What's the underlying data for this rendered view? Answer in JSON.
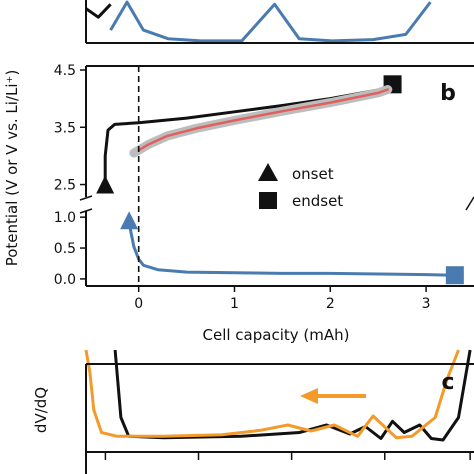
{
  "figure": {
    "panel_b_label": "b",
    "panel_c_label": "c"
  },
  "colors": {
    "black": "#111111",
    "blue": "#4a7bb0",
    "red": "#e06060",
    "gray": "#bdbdbd",
    "orange": "#f39a2b"
  },
  "chart_data": [
    {
      "id": "panel-a-fragment",
      "type": "line",
      "title": "",
      "series": [
        {
          "color": "#111111",
          "x": [
            0.0,
            0.15,
            0.3
          ],
          "y": [
            0.8,
            0.6,
            0.9
          ]
        },
        {
          "color": "#4a7bb0",
          "x": [
            0.3,
            0.5,
            0.7,
            1.0,
            1.4,
            1.9,
            2.3,
            2.6,
            3.0,
            3.5,
            3.9,
            4.2
          ],
          "y": [
            0.3,
            0.95,
            0.3,
            0.1,
            0.05,
            0.05,
            0.9,
            0.1,
            0.05,
            0.08,
            0.2,
            0.95
          ]
        }
      ]
    },
    {
      "id": "panel-b",
      "type": "line",
      "title": "",
      "xlabel": "Cell capacity (mAh)",
      "ylabel": "Potential (V or V vs. Li/Li⁺)",
      "xlim": [
        -0.55,
        3.5
      ],
      "x_ticks": [
        "0",
        "1",
        "2",
        "3"
      ],
      "upper_ylim": [
        2.3,
        4.5
      ],
      "upper_y_ticks": [
        "2.5",
        "3.5",
        "4.5"
      ],
      "lower_ylim": [
        -0.05,
        1.1
      ],
      "lower_y_ticks": [
        "0.0",
        "0.5",
        "1.0"
      ],
      "reference_line_x": 0,
      "legend": [
        {
          "marker": "triangle",
          "label": "onset"
        },
        {
          "marker": "square",
          "label": "endset"
        }
      ],
      "legend_placement": "center-right",
      "series": [
        {
          "color": "#111111",
          "x": [
            -0.35,
            -0.35,
            -0.32,
            -0.25,
            0.0,
            0.5,
            1.0,
            1.5,
            2.0,
            2.5,
            2.65
          ],
          "y": [
            2.5,
            3.0,
            3.45,
            3.55,
            3.58,
            3.66,
            3.77,
            3.88,
            4.0,
            4.15,
            4.25
          ],
          "markers": {
            "start": "triangle",
            "end": "square"
          }
        },
        {
          "color": "#bdbdbd",
          "x": [
            -0.05,
            0.0,
            0.1,
            0.3,
            0.6,
            1.0,
            1.5,
            2.0,
            2.5,
            2.6
          ],
          "y": [
            3.05,
            3.1,
            3.2,
            3.35,
            3.48,
            3.62,
            3.78,
            3.93,
            4.1,
            4.16
          ]
        },
        {
          "color": "#e06060",
          "x": [
            0.0,
            0.1,
            0.3,
            0.6,
            1.0,
            1.5,
            2.0,
            2.5,
            2.6
          ],
          "y": [
            3.1,
            3.2,
            3.35,
            3.48,
            3.62,
            3.78,
            3.93,
            4.1,
            4.16
          ]
        },
        {
          "color": "#4a7bb0",
          "x": [
            -0.1,
            -0.08,
            -0.05,
            0.0,
            0.05,
            0.2,
            0.5,
            1.0,
            1.5,
            2.0,
            2.5,
            3.0,
            3.3
          ],
          "y": [
            0.95,
            0.75,
            0.52,
            0.32,
            0.22,
            0.15,
            0.11,
            0.1,
            0.09,
            0.09,
            0.08,
            0.07,
            0.06
          ],
          "markers": {
            "start": "triangle",
            "end": "square"
          }
        }
      ]
    },
    {
      "id": "panel-c",
      "type": "line",
      "title": "",
      "ylabel": "dV/dQ",
      "xlim": [
        0,
        1
      ],
      "ylim": [
        0,
        1
      ],
      "arrow_direction": "left",
      "series": [
        {
          "color": "#111111",
          "x": [
            0.075,
            0.09,
            0.11,
            0.2,
            0.4,
            0.55,
            0.62,
            0.68,
            0.72,
            0.76,
            0.79,
            0.82,
            0.86,
            0.89,
            0.92,
            0.96,
            0.99
          ],
          "y": [
            1.2,
            0.3,
            0.05,
            0.03,
            0.05,
            0.1,
            0.2,
            0.08,
            0.18,
            0.02,
            0.25,
            0.1,
            0.2,
            0.02,
            0.0,
            0.3,
            1.2
          ]
        },
        {
          "color": "#f39a2b",
          "x": [
            0.0,
            0.01,
            0.02,
            0.04,
            0.08,
            0.2,
            0.35,
            0.45,
            0.52,
            0.58,
            0.64,
            0.7,
            0.74,
            0.8,
            0.84,
            0.9,
            0.93,
            0.96
          ],
          "y": [
            1.2,
            0.9,
            0.4,
            0.1,
            0.05,
            0.05,
            0.07,
            0.13,
            0.2,
            0.12,
            0.2,
            0.05,
            0.32,
            0.03,
            0.05,
            0.3,
            0.8,
            1.2
          ]
        }
      ]
    }
  ]
}
